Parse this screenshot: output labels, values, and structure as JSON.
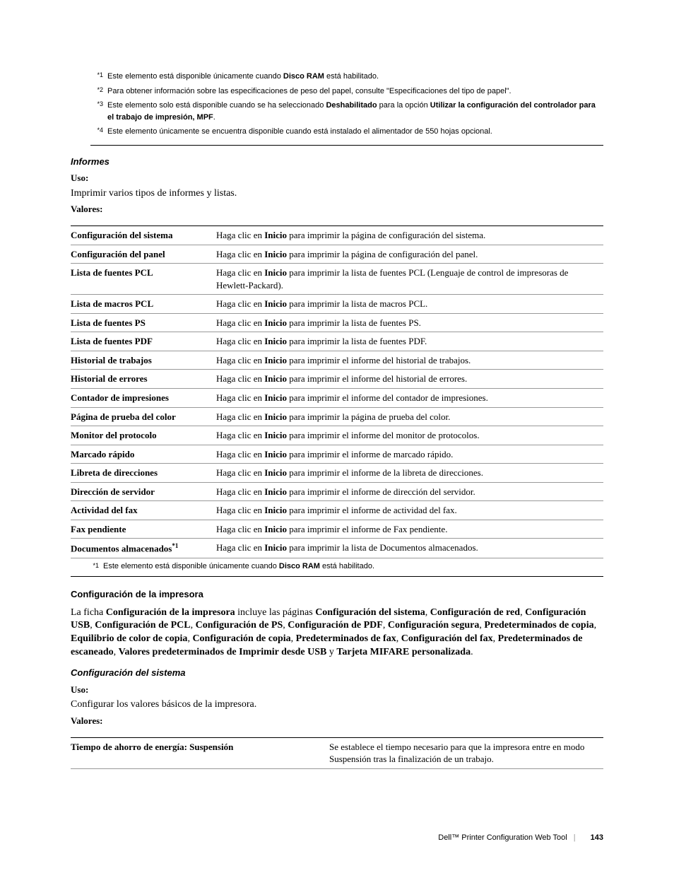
{
  "top_footnotes": [
    {
      "mark": "*1",
      "text_pre": "Este elemento está disponible únicamente cuando ",
      "bold1": "Disco RAM",
      "text_post": " está habilitado."
    },
    {
      "mark": "*2",
      "text_pre": "Para obtener información sobre las especificaciones de peso del papel, consulte \"Especificaciones del tipo de papel\".",
      "bold1": "",
      "text_post": ""
    },
    {
      "mark": "*3",
      "text_pre": "Este elemento solo está disponible cuando se ha seleccionado ",
      "bold1": "Deshabilitado",
      "text_mid": " para la opción ",
      "bold2": "Utilizar la configuración del controlador para el trabajo de impresión, MPF",
      "text_post": "."
    },
    {
      "mark": "*4",
      "text_pre": "Este elemento únicamente se encuentra disponible cuando está instalado el alimentador de 550 hojas opcional.",
      "bold1": "",
      "text_post": ""
    }
  ],
  "informes": {
    "heading": "Informes",
    "uso_label": "Uso:",
    "uso_text": "Imprimir varios tipos de informes y listas.",
    "valores_label": "Valores:",
    "rows": [
      {
        "label": "Configuración del sistema",
        "pre": "Haga clic en ",
        "bold": "Inicio",
        "post": " para imprimir la página de configuración del sistema."
      },
      {
        "label": "Configuración del panel",
        "pre": "Haga clic en ",
        "bold": "Inicio",
        "post": " para imprimir la página de configuración del panel."
      },
      {
        "label": "Lista de fuentes PCL",
        "pre": "Haga clic en ",
        "bold": "Inicio",
        "post": " para imprimir la lista de fuentes PCL (Lenguaje de control de impresoras de Hewlett-Packard)."
      },
      {
        "label": "Lista de macros PCL",
        "pre": "Haga clic en ",
        "bold": "Inicio",
        "post": " para imprimir la lista de macros PCL."
      },
      {
        "label": "Lista de fuentes PS",
        "pre": "Haga clic en ",
        "bold": "Inicio",
        "post": " para imprimir la lista de fuentes PS."
      },
      {
        "label": "Lista de fuentes PDF",
        "pre": "Haga clic en ",
        "bold": "Inicio",
        "post": " para imprimir la lista de fuentes PDF."
      },
      {
        "label": "Historial de trabajos",
        "pre": "Haga clic en ",
        "bold": "Inicio",
        "post": " para imprimir el informe del historial de trabajos."
      },
      {
        "label": "Historial de errores",
        "pre": "Haga clic en ",
        "bold": "Inicio",
        "post": " para imprimir el informe del historial de errores."
      },
      {
        "label": "Contador de impresiones",
        "pre": "Haga clic en ",
        "bold": "Inicio",
        "post": " para imprimir el informe del contador de impresiones."
      },
      {
        "label": "Página de prueba del color",
        "pre": "Haga clic en ",
        "bold": "Inicio",
        "post": " para imprimir la página de prueba del color."
      },
      {
        "label": "Monitor del protocolo",
        "pre": "Haga clic en ",
        "bold": "Inicio",
        "post": " para imprimir el informe del monitor de protocolos."
      },
      {
        "label": "Marcado rápido",
        "pre": "Haga clic en ",
        "bold": "Inicio",
        "post": " para imprimir el informe de marcado rápido."
      },
      {
        "label": "Libreta de direcciones",
        "pre": "Haga clic en ",
        "bold": "Inicio",
        "post": " para imprimir el informe de la libreta de direcciones."
      },
      {
        "label": "Dirección de servidor",
        "pre": "Haga clic en ",
        "bold": "Inicio",
        "post": " para imprimir el informe de dirección del servidor."
      },
      {
        "label": "Actividad del fax",
        "pre": "Haga clic en ",
        "bold": "Inicio",
        "post": " para imprimir el informe de actividad del fax."
      },
      {
        "label": "Fax pendiente",
        "pre": "Haga clic en ",
        "bold": "Inicio",
        "post": " para imprimir el informe de Fax pendiente."
      },
      {
        "label": "Documentos almacenados",
        "sup": "*1",
        "pre": "Haga clic en ",
        "bold": "Inicio",
        "post": " para imprimir la lista de Documentos almacenados."
      }
    ],
    "table_footnote": {
      "mark": "*1",
      "pre": "Este elemento está disponible únicamente cuando ",
      "bold": "Disco RAM",
      "post": " está habilitado."
    }
  },
  "config_impresora": {
    "heading": "Configuración de la impresora",
    "para_pre": "La ficha ",
    "para_b1": "Configuración de la impresora",
    "para_mid1": " incluye las páginas ",
    "para_b2": "Configuración del sistema",
    "sep1": ", ",
    "para_b3": "Configuración de red",
    "sep2": ", ",
    "para_b4": "Configuración USB",
    "sep3": ", ",
    "para_b5": "Configuración de PCL",
    "sep4": ", ",
    "para_b6": "Configuración de PS",
    "sep5": ", ",
    "para_b7": "Configuración de PDF",
    "sep6": ", ",
    "para_b8": "Configuración segura",
    "sep7": ", ",
    "para_b9": "Predeterminados de copia",
    "sep8": ", ",
    "para_b10": "Equilibrio de color de copia",
    "sep9": ", ",
    "para_b11": "Configuración de copia",
    "sep10": ", ",
    "para_b12": "Predeterminados de fax",
    "sep11": ", ",
    "para_b13": "Configuración del fax",
    "sep12": ", ",
    "para_b14": "Predeterminados de escaneado",
    "sep13": ", ",
    "para_b15": "Valores predeterminados de Imprimir desde USB",
    "sep14": " y ",
    "para_b16": "Tarjeta MIFARE personalizada",
    "para_post": "."
  },
  "config_sistema": {
    "heading": "Configuración del sistema",
    "uso_label": "Uso:",
    "uso_text": "Configurar los valores básicos de la impresora.",
    "valores_label": "Valores:",
    "row_label": "Tiempo de ahorro de energía: Suspensión",
    "row_text": "Se establece el tiempo necesario para que la impresora entre en modo Suspensión tras la finalización de un trabajo."
  },
  "footer": {
    "text": "Dell™ Printer Configuration Web Tool",
    "page": "143"
  }
}
